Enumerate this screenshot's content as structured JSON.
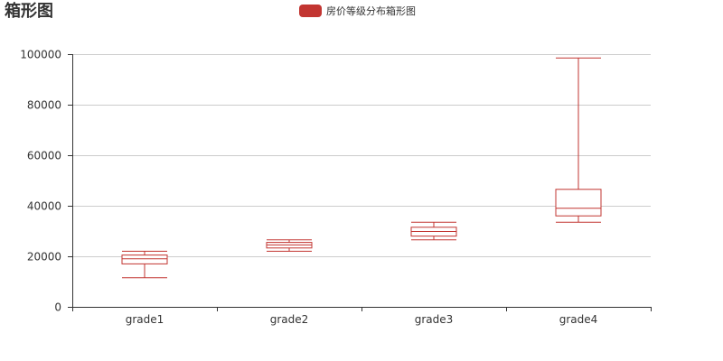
{
  "chart_data": {
    "type": "boxplot",
    "title": "箱形图",
    "categories": [
      "grade1",
      "grade2",
      "grade3",
      "grade4"
    ],
    "series": [
      {
        "name": "房价等级分布箱形图",
        "boxes": [
          {
            "min": 11500,
            "q1": 17000,
            "median": 19000,
            "q3": 20500,
            "max": 22000
          },
          {
            "min": 22000,
            "q1": 23300,
            "median": 24500,
            "q3": 25500,
            "max": 26500
          },
          {
            "min": 26500,
            "q1": 28000,
            "median": 29800,
            "q3": 31500,
            "max": 33500
          },
          {
            "min": 33500,
            "q1": 36000,
            "median": 39000,
            "q3": 46500,
            "max": 98500
          }
        ]
      }
    ],
    "y_ticks": [
      "0",
      "20000",
      "40000",
      "60000",
      "80000",
      "100000"
    ],
    "ylim": [
      0,
      100000
    ],
    "grid": true,
    "legend_position": "top-center"
  },
  "colors": {
    "series": "#c23531",
    "grid": "#cccccc",
    "axis": "#333333"
  }
}
